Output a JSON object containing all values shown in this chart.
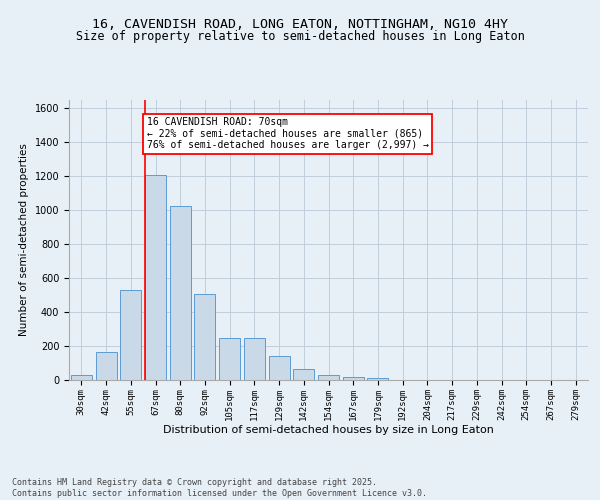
{
  "title1": "16, CAVENDISH ROAD, LONG EATON, NOTTINGHAM, NG10 4HY",
  "title2": "Size of property relative to semi-detached houses in Long Eaton",
  "xlabel": "Distribution of semi-detached houses by size in Long Eaton",
  "ylabel": "Number of semi-detached properties",
  "bar_labels": [
    "30sqm",
    "42sqm",
    "55sqm",
    "67sqm",
    "80sqm",
    "92sqm",
    "105sqm",
    "117sqm",
    "129sqm",
    "142sqm",
    "154sqm",
    "167sqm",
    "179sqm",
    "192sqm",
    "204sqm",
    "217sqm",
    "229sqm",
    "242sqm",
    "254sqm",
    "267sqm",
    "279sqm"
  ],
  "bar_values": [
    30,
    165,
    530,
    1210,
    1025,
    505,
    245,
    245,
    140,
    65,
    30,
    20,
    10,
    0,
    0,
    0,
    0,
    0,
    0,
    0,
    0
  ],
  "bar_color": "#c9d9e8",
  "bar_edge_color": "#5b9bd5",
  "vline_color": "red",
  "vline_x_index": 3,
  "annotation_text": "16 CAVENDISH ROAD: 70sqm\n← 22% of semi-detached houses are smaller (865)\n76% of semi-detached houses are larger (2,997) →",
  "annotation_box_color": "white",
  "annotation_box_edge": "red",
  "ylim": [
    0,
    1650
  ],
  "yticks": [
    0,
    200,
    400,
    600,
    800,
    1000,
    1200,
    1400,
    1600
  ],
  "grid_color": "#c0cedc",
  "background_color": "#e8f0f7",
  "footer_text": "Contains HM Land Registry data © Crown copyright and database right 2025.\nContains public sector information licensed under the Open Government Licence v3.0.",
  "title1_fontsize": 9.5,
  "title2_fontsize": 8.5,
  "annotation_fontsize": 7,
  "footer_fontsize": 6,
  "ylabel_fontsize": 7.5,
  "xlabel_fontsize": 8,
  "tick_fontsize": 6.5,
  "ytick_fontsize": 7
}
